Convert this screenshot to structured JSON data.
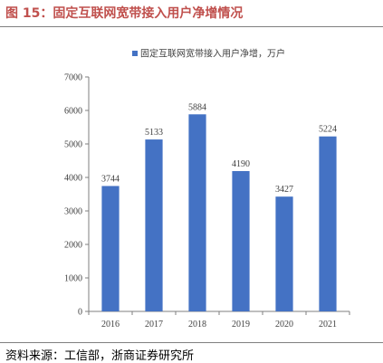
{
  "figure": {
    "title": "图 15：固定互联网宽带接入用户净增情况",
    "source": "资料来源：工信部，浙商证券研究所"
  },
  "colors": {
    "bar": "#4472c4",
    "title": "#c0504d",
    "axis": "#7f7f7f",
    "text": "#404040"
  },
  "chart_data": {
    "type": "bar",
    "categories": [
      "2016",
      "2017",
      "2018",
      "2019",
      "2020",
      "2021"
    ],
    "series": [
      {
        "name": "固定互联网宽带接入用户净增，万户",
        "values": [
          3744,
          5133,
          5884,
          4190,
          3427,
          5224
        ]
      }
    ],
    "ylim": [
      0,
      7000
    ],
    "yticks": [
      0,
      1000,
      2000,
      3000,
      4000,
      5000,
      6000,
      7000
    ],
    "legend": "top-center",
    "grid": false,
    "data_labels": true
  }
}
